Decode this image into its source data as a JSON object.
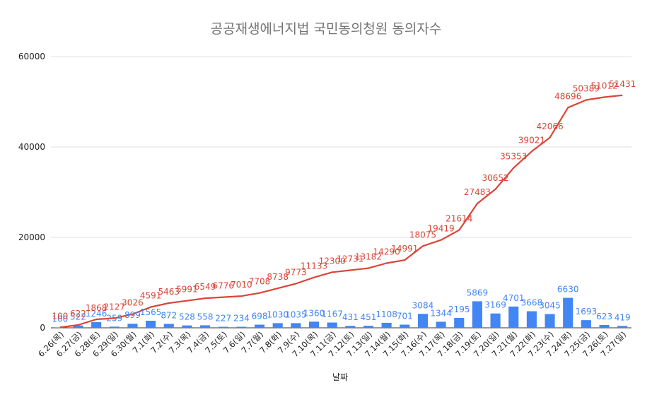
{
  "chart_data": {
    "type": "bar",
    "title": "공공재생에너지법 국민동의청원 동의자수",
    "xlabel": "날짜",
    "ylabel": "",
    "ylim": [
      0,
      60000
    ],
    "yticks": [
      0,
      20000,
      40000,
      60000
    ],
    "grid": true,
    "legend": "none",
    "colors": {
      "bars": "#4285f4",
      "line": "#db4437",
      "grid": "#e0e0e0"
    },
    "categories": [
      "6.26(목)",
      "6.27(금)",
      "6.28(토)",
      "6.29(일)",
      "6.30(월)",
      "7.1(화)",
      "7.2(수)",
      "7.3(목)",
      "7.4(금)",
      "7.5(토)",
      "7.6(일)",
      "7.7(월)",
      "7.8(화)",
      "7.9(수)",
      "7.10(목)",
      "7.11(금)",
      "7.12(토)",
      "7.13(일)",
      "7.14(월)",
      "7.15(화)",
      "7.16(수)",
      "7.17(목)",
      "7.18(금)",
      "7.19(토)",
      "7.20(일)",
      "7.21(월)",
      "7.22(화)",
      "7.23(수)",
      "7.24(목)",
      "7.25(금)",
      "7.26(토)",
      "7.27(일)"
    ],
    "series": [
      {
        "type": "bar",
        "values": [
          100,
          522,
          1246,
          259,
          899,
          1565,
          872,
          528,
          558,
          227,
          234,
          698,
          1030,
          1035,
          1360,
          1167,
          431,
          451,
          1108,
          701,
          3084,
          1344,
          2195,
          5869,
          3169,
          4701,
          3668,
          3045,
          6630,
          1693,
          623,
          419
        ]
      },
      {
        "type": "line",
        "values": [
          100,
          622,
          1868,
          2127,
          3026,
          4591,
          5463,
          5991,
          6549,
          6776,
          7010,
          7708,
          8738,
          9773,
          11133,
          12300,
          12731,
          13182,
          14290,
          14991,
          18075,
          19419,
          21614,
          27483,
          30652,
          35353,
          39021,
          42066,
          48696,
          50389,
          51012,
          51431
        ]
      }
    ]
  }
}
